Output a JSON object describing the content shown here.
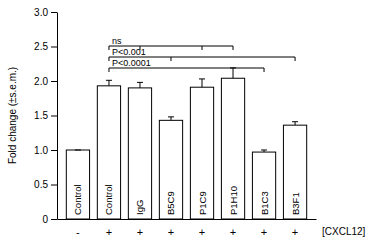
{
  "chart_data": {
    "type": "bar",
    "y_label": "Fold change (±s.e.m.)",
    "categories": [
      "Control",
      "Control",
      "IgG",
      "B5C9",
      "P1C9",
      "P1H10",
      "B1C3",
      "B3F1"
    ],
    "values": [
      1.0,
      1.93,
      1.9,
      1.43,
      1.91,
      2.04,
      0.97,
      1.36
    ],
    "errors": [
      0,
      0.08,
      0.08,
      0.05,
      0.12,
      0.15,
      0.03,
      0.05
    ],
    "color": "#ffffff",
    "ylim": [
      0,
      3
    ],
    "yticks": [
      0,
      0.5,
      {
        "value": 1,
        "label": "1.0"
      },
      1.5,
      {
        "value": 2,
        "label": "2.0"
      },
      2.5,
      {
        "value": 3,
        "label": "3.0"
      }
    ],
    "treatment": {
      "label": "[CXCL12]",
      "signs": [
        "-",
        "+",
        "+",
        "+",
        "+",
        "+",
        "+",
        "+"
      ]
    },
    "comparisons": [
      {
        "label": "ns",
        "groups": [
          1,
          2,
          4,
          5
        ]
      },
      {
        "label": "P<0.001",
        "groups": [
          1,
          3,
          7
        ]
      },
      {
        "label": "P<0.0001",
        "groups": [
          1,
          6
        ]
      }
    ]
  }
}
